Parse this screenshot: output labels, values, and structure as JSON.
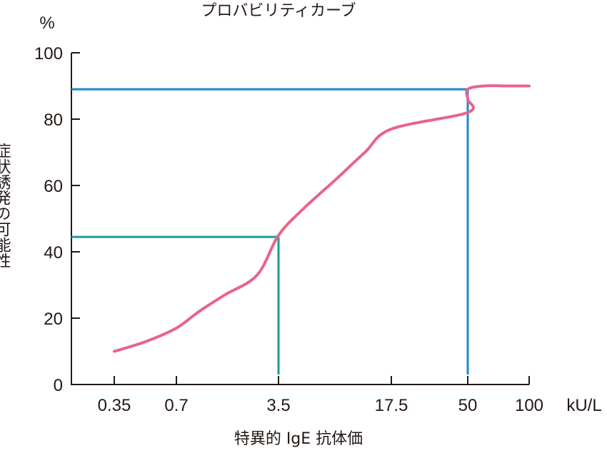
{
  "chart_data": {
    "type": "line",
    "title": "プロバビリティカーブ",
    "xlabel": "特異的 IgE 抗体価",
    "xunit": "kU/L",
    "ylabel": "症状誘発の可能性",
    "yunit": "%",
    "x_tick_labels": [
      "0.35",
      "0.7",
      "3.5",
      "17.5",
      "50",
      "100"
    ],
    "y_ticks": [
      0,
      20,
      40,
      60,
      80,
      100
    ],
    "ylim": [
      0,
      100
    ],
    "x_scale": "categorical-ticks",
    "grid": false,
    "series": [
      {
        "color": "#e8638e",
        "x": [
          "0.35",
          "0.5",
          "0.7",
          "1.0",
          "1.5",
          "2.5",
          "3.5",
          "5",
          "8",
          "12",
          "17.5",
          "25",
          "35",
          "50",
          "60",
          "80",
          "100"
        ],
        "values": [
          10,
          13,
          17,
          22,
          27,
          33,
          45,
          53,
          62,
          70,
          77,
          82,
          86,
          89,
          90,
          90,
          90
        ]
      }
    ],
    "reference_lines": [
      {
        "x": "3.5",
        "y": 44.5,
        "color": "#1a9a94"
      },
      {
        "x": "50",
        "y": 89,
        "color": "#1e88c8"
      }
    ]
  }
}
